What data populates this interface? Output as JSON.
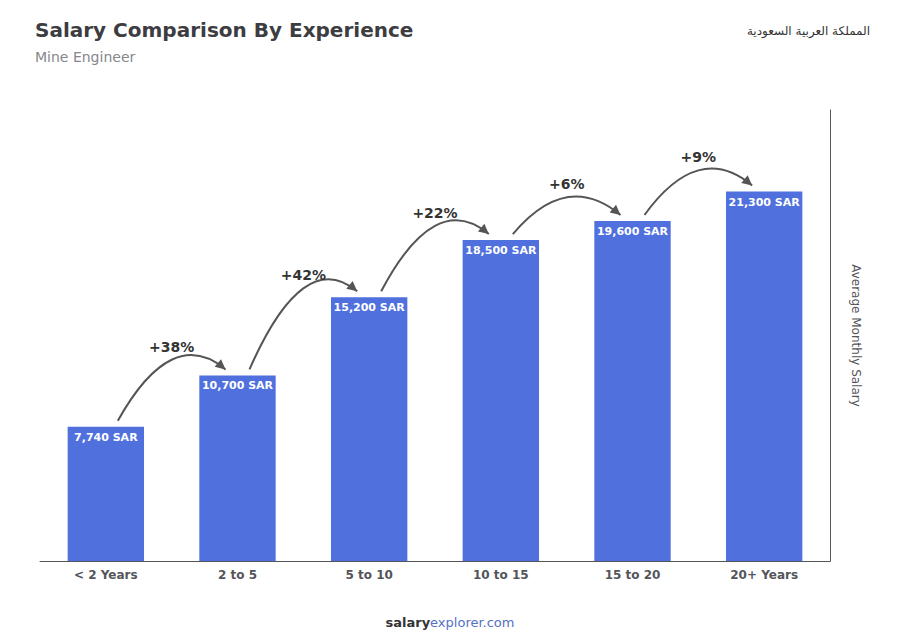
{
  "chart_data": {
    "type": "bar",
    "title": "Salary Comparison By Experience",
    "subtitle": "Mine Engineer",
    "ylabel": "Average Monthly Salary",
    "categories": [
      "< 2 Years",
      "2 to 5",
      "5 to 10",
      "10 to 15",
      "15 to 20",
      "20+ Years"
    ],
    "values": [
      7740,
      10700,
      15200,
      18500,
      19600,
      21300
    ],
    "value_labels": [
      "7,740 SAR",
      "10,700 SAR",
      "15,200 SAR",
      "18,500 SAR",
      "19,600 SAR",
      "21,300 SAR"
    ],
    "data_labels": true,
    "annotations": [
      "+38%",
      "+42%",
      "+22%",
      "+6%",
      "+9%"
    ],
    "badge": "المملكة العربية السعودية",
    "footer": [
      "salary",
      "explorer.com"
    ],
    "ylim": [
      0,
      26000
    ],
    "tick_labels": "x",
    "grid": false
  }
}
